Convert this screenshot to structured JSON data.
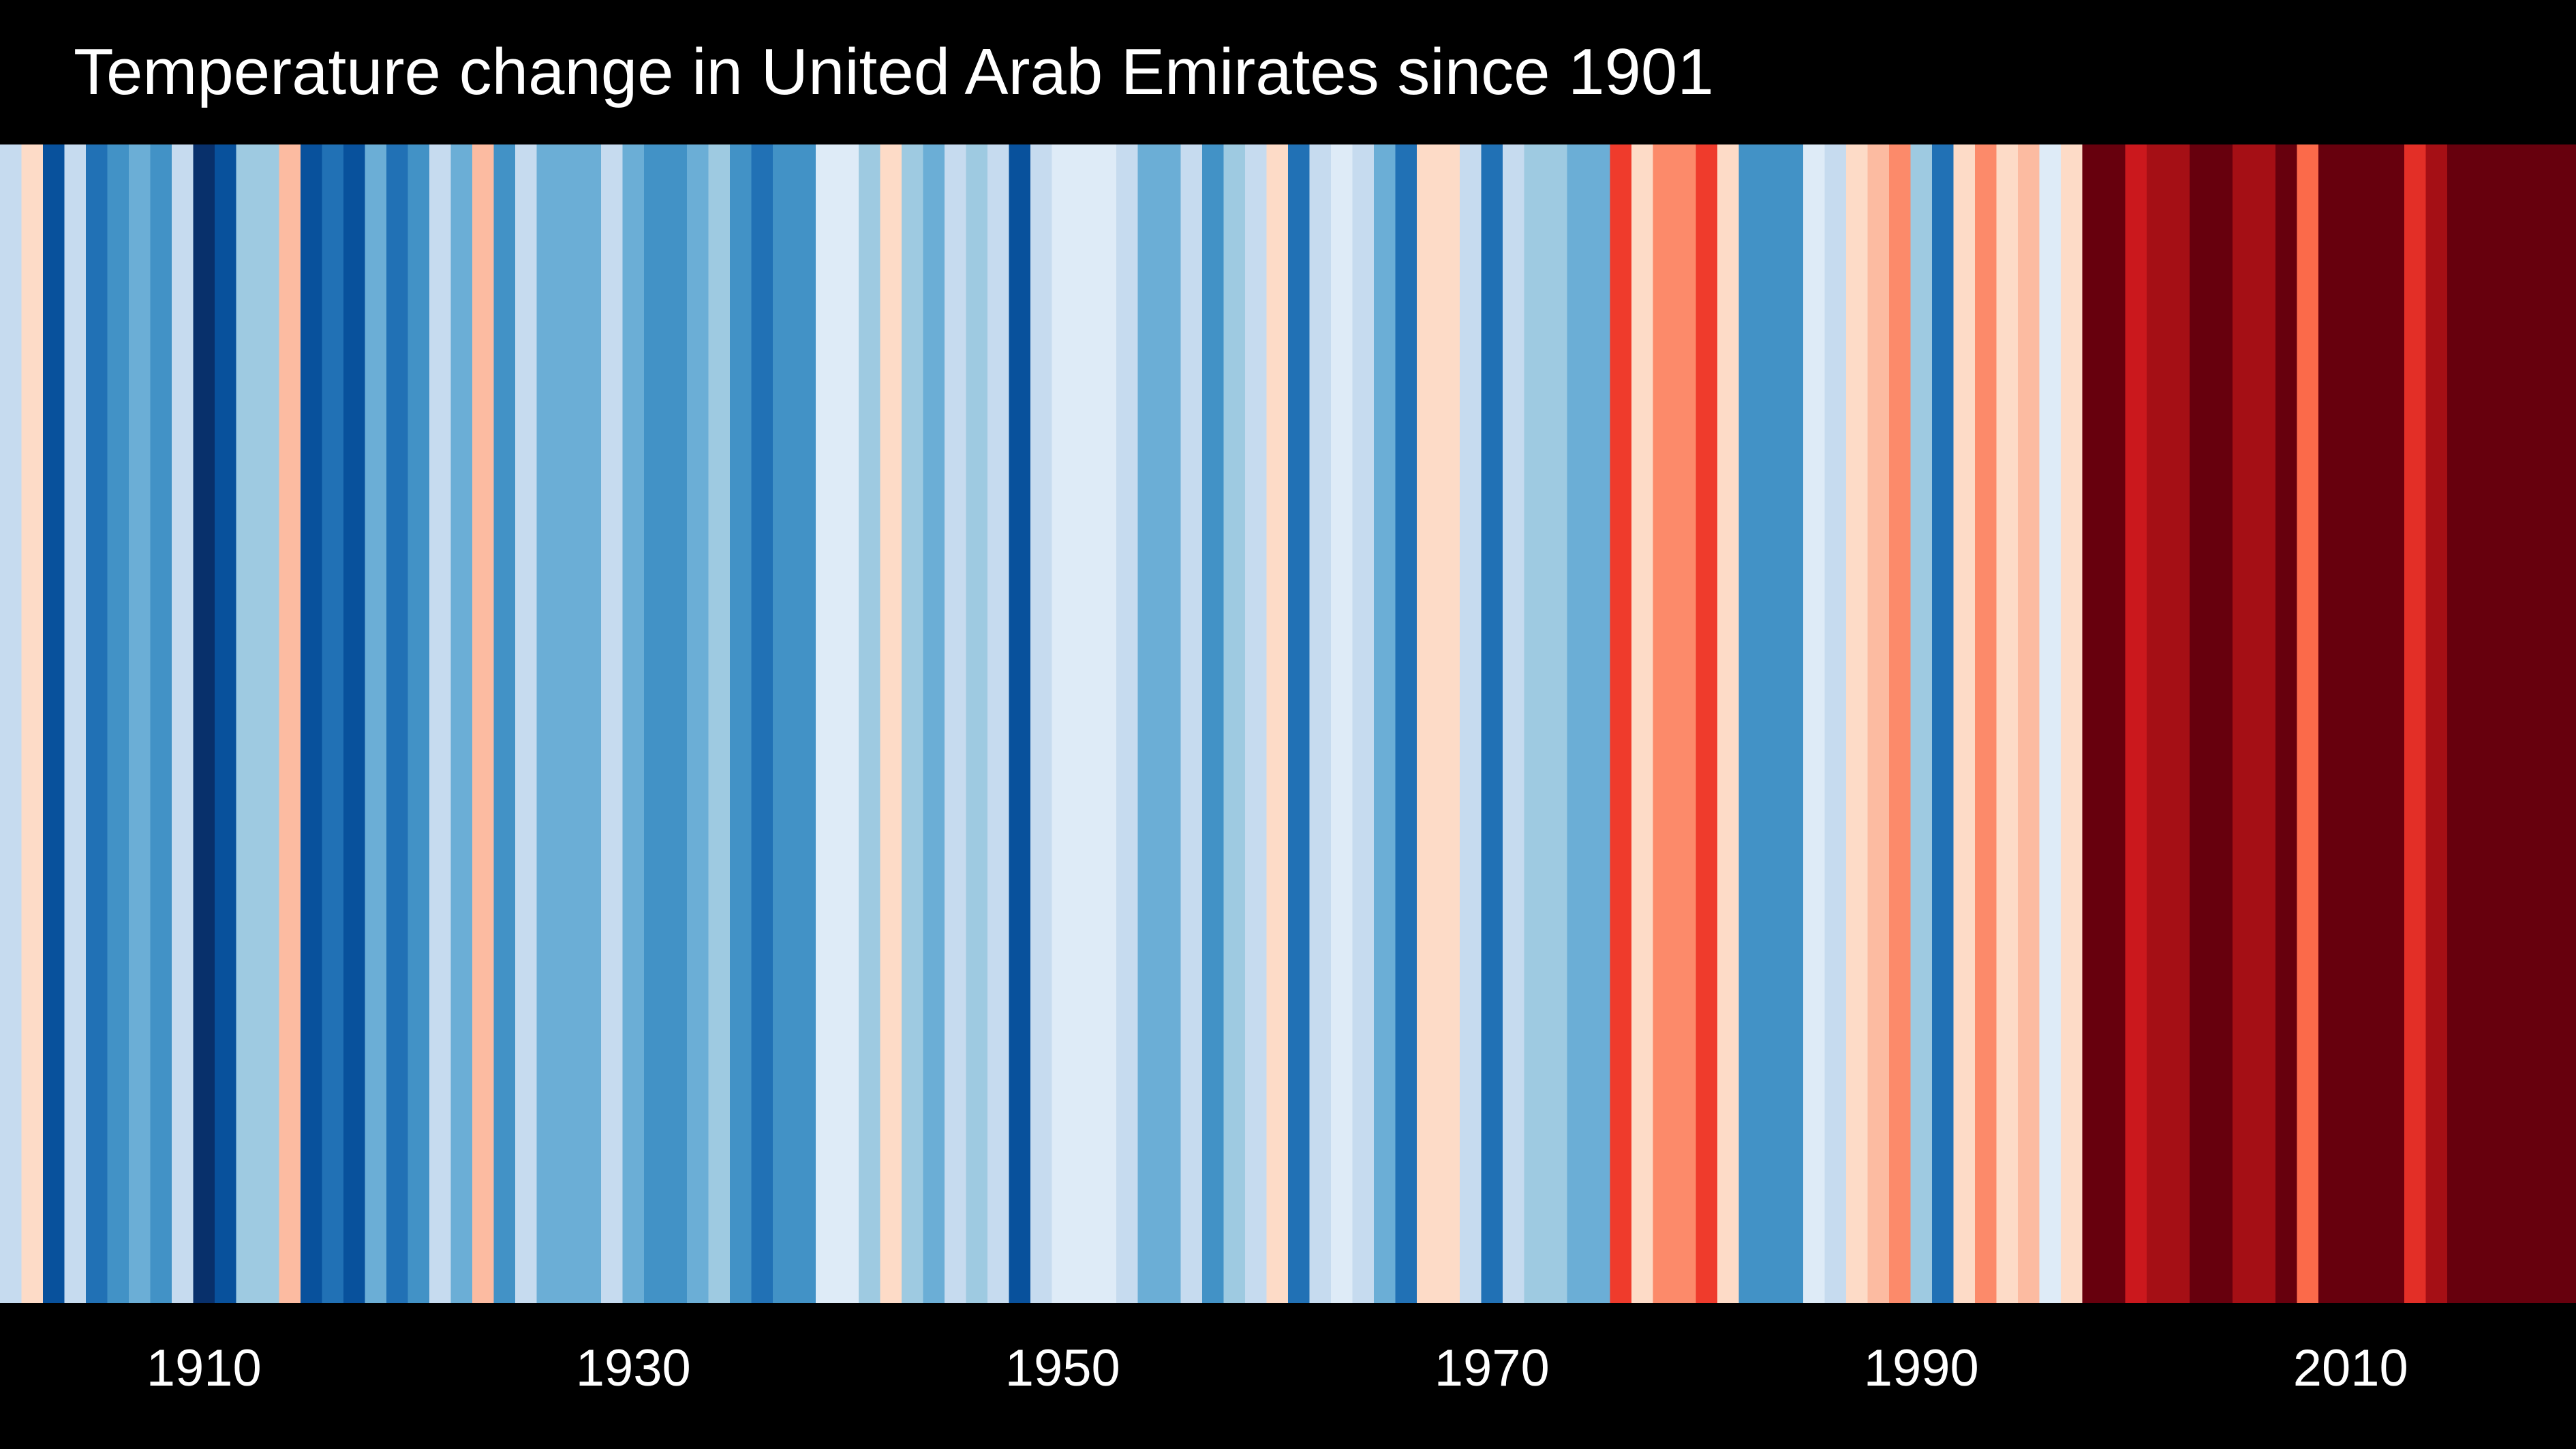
{
  "chart_data": {
    "type": "heatmap",
    "title": "Temperature change in United Arab Emirates since 1901",
    "xlabel": "",
    "ylabel": "",
    "x_tick_labels": [
      "1910",
      "1930",
      "1950",
      "1970",
      "1990",
      "2010"
    ],
    "x_ticks": [
      1910,
      1930,
      1950,
      1970,
      1990,
      2010
    ],
    "x_range": [
      1901,
      2020
    ],
    "grid": false,
    "legend": "none",
    "colormap": "RdBu_r",
    "years": [
      1901,
      1902,
      1903,
      1904,
      1905,
      1906,
      1907,
      1908,
      1909,
      1910,
      1911,
      1912,
      1913,
      1914,
      1915,
      1916,
      1917,
      1918,
      1919,
      1920,
      1921,
      1922,
      1923,
      1924,
      1925,
      1926,
      1927,
      1928,
      1929,
      1930,
      1931,
      1932,
      1933,
      1934,
      1935,
      1936,
      1937,
      1938,
      1939,
      1940,
      1941,
      1942,
      1943,
      1944,
      1945,
      1946,
      1947,
      1948,
      1949,
      1950,
      1951,
      1952,
      1953,
      1954,
      1955,
      1956,
      1957,
      1958,
      1959,
      1960,
      1961,
      1962,
      1963,
      1964,
      1965,
      1966,
      1967,
      1968,
      1969,
      1970,
      1971,
      1972,
      1973,
      1974,
      1975,
      1976,
      1977,
      1978,
      1979,
      1980,
      1981,
      1982,
      1983,
      1984,
      1985,
      1986,
      1987,
      1988,
      1989,
      1990,
      1991,
      1992,
      1993,
      1994,
      1995,
      1996,
      1997,
      1998,
      1999,
      2000,
      2001,
      2002,
      2003,
      2004,
      2005,
      2006,
      2007,
      2008,
      2009,
      2010,
      2011,
      2012,
      2013,
      2014,
      2015,
      2016,
      2017,
      2018,
      2019,
      2020
    ],
    "colors": [
      "#c6dbef",
      "#fddbc7",
      "#08519c",
      "#c6dbef",
      "#2171b5",
      "#4292c6",
      "#6baed6",
      "#4292c6",
      "#c6dbef",
      "#08306b",
      "#08519c",
      "#9ecae1",
      "#9ecae1",
      "#fcbba1",
      "#08519c",
      "#2171b5",
      "#08519c",
      "#6baed6",
      "#2171b5",
      "#4292c6",
      "#c6dbef",
      "#6baed6",
      "#fcbba1",
      "#4292c6",
      "#c6dbef",
      "#6baed6",
      "#6baed6",
      "#6baed6",
      "#c6dbef",
      "#6baed6",
      "#4292c6",
      "#4292c6",
      "#6baed6",
      "#9ecae1",
      "#4292c6",
      "#2171b5",
      "#4292c6",
      "#4292c6",
      "#deebf7",
      "#deebf7",
      "#9ecae1",
      "#fddbc7",
      "#9ecae1",
      "#6baed6",
      "#c6dbef",
      "#9ecae1",
      "#c6dbef",
      "#08519c",
      "#c6dbef",
      "#deebf7",
      "#deebf7",
      "#deebf7",
      "#c6dbef",
      "#6baed6",
      "#6baed6",
      "#c6dbef",
      "#4292c6",
      "#9ecae1",
      "#c6dbef",
      "#fddbc7",
      "#2171b5",
      "#c6dbef",
      "#deebf7",
      "#c6dbef",
      "#6baed6",
      "#2171b5",
      "#fddbc7",
      "#fddbc7",
      "#c6dbef",
      "#2171b5",
      "#c6dbef",
      "#9ecae1",
      "#9ecae1",
      "#6baed6",
      "#6baed6",
      "#ef3b2c",
      "#fddbc7",
      "#fc8a6a",
      "#fc8a6a",
      "#ef3b2c",
      "#fddbc7",
      "#4292c6",
      "#4292c6",
      "#4292c6",
      "#deebf7",
      "#c6dbef",
      "#fddbc7",
      "#fcbba1",
      "#fc8a6a",
      "#9ecae1",
      "#2171b5",
      "#fddbc7",
      "#fc8a6a",
      "#fddbc7",
      "#fcbba1",
      "#deebf7",
      "#fddbc7",
      "#67000d",
      "#67000d",
      "#cb181d",
      "#a50f15",
      "#a50f15",
      "#67000d",
      "#67000d",
      "#a50f15",
      "#a50f15",
      "#67000d",
      "#fb6a4a",
      "#67000d",
      "#67000d",
      "#67000d",
      "#67000d",
      "#e32f27",
      "#a50f15",
      "#67000d",
      "#67000d",
      "#67000d",
      "#67000d",
      "#67000d",
      "#67000d"
    ]
  }
}
